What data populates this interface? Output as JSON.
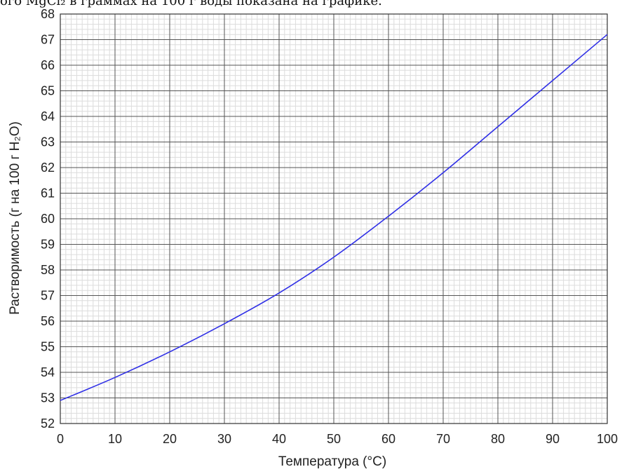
{
  "header": {
    "text": "ого MgCl₂ в граммах на 100 г воды показана на графике."
  },
  "chart_data": {
    "type": "line",
    "xlabel": "Температура (°C)",
    "ylabel": "Растворимость (г на 100 г H₂O)",
    "xlim": [
      0,
      100
    ],
    "ylim": [
      52,
      68
    ],
    "x_ticks": [
      0,
      10,
      20,
      30,
      40,
      50,
      60,
      70,
      80,
      90,
      100
    ],
    "y_ticks": [
      52,
      53,
      54,
      55,
      56,
      57,
      58,
      59,
      60,
      61,
      62,
      63,
      64,
      65,
      66,
      67,
      68
    ],
    "x_minor_step": 1,
    "y_minor_step": 0.2,
    "grid": true,
    "series": [
      {
        "color": "#2f2fe6",
        "x": [
          0,
          10,
          20,
          30,
          40,
          50,
          60,
          70,
          80,
          90,
          100
        ],
        "y": [
          52.9,
          53.8,
          54.8,
          55.9,
          57.1,
          58.5,
          60.1,
          61.8,
          63.6,
          65.4,
          67.2
        ]
      }
    ]
  }
}
